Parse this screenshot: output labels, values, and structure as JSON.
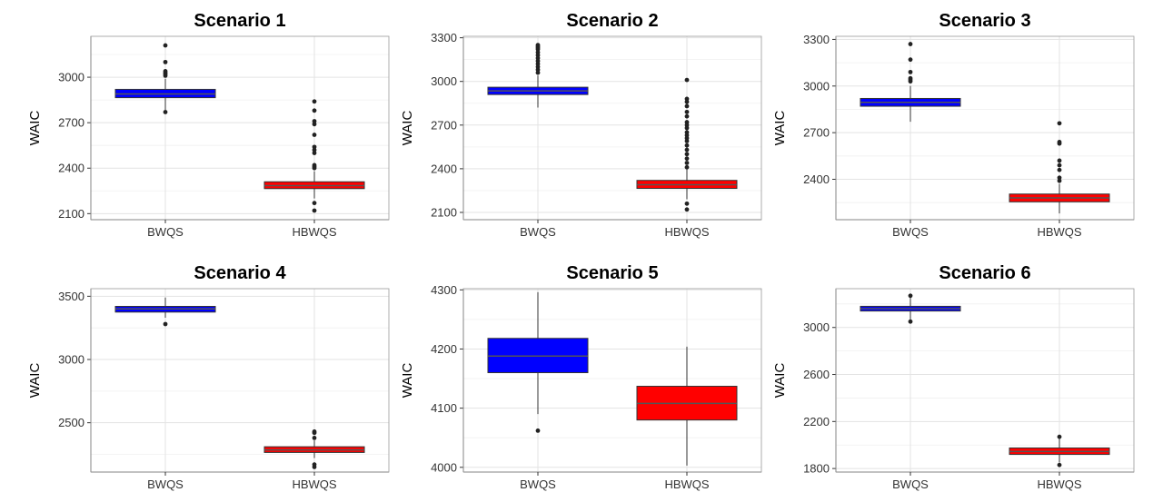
{
  "chart_data": [
    {
      "type": "box",
      "title": "Scenario 1",
      "ylabel": "WAIC",
      "categories": [
        "BWQS",
        "HBWQS"
      ],
      "colors": [
        "#0000ff",
        "#ff0000"
      ],
      "ylim": [
        2060,
        3270
      ],
      "yticks": [
        2100,
        2400,
        2700,
        3000
      ],
      "yticklabels": [
        "2100",
        "2400",
        "2700",
        "3000"
      ],
      "boxes": [
        {
          "q1": 2865,
          "median": 2890,
          "q3": 2920,
          "whisker_low": 2770,
          "whisker_high": 2990,
          "outliers": [
            2770,
            3010,
            3020,
            3030,
            3040,
            3100,
            3210
          ]
        },
        {
          "q1": 2265,
          "median": 2285,
          "q3": 2310,
          "whisker_low": 2200,
          "whisker_high": 2380,
          "outliers": [
            2120,
            2170,
            2400,
            2410,
            2420,
            2500,
            2520,
            2540,
            2620,
            2690,
            2710,
            2780,
            2840
          ]
        }
      ],
      "grid": true
    },
    {
      "type": "box",
      "title": "Scenario 2",
      "ylabel": "WAIC",
      "categories": [
        "BWQS",
        "HBWQS"
      ],
      "colors": [
        "#0000ff",
        "#ff0000"
      ],
      "ylim": [
        2050,
        3310
      ],
      "yticks": [
        2100,
        2400,
        2700,
        3000,
        3300
      ],
      "yticklabels": [
        "2100",
        "2400",
        "2700",
        "3000",
        "3300"
      ],
      "boxes": [
        {
          "q1": 2910,
          "median": 2935,
          "q3": 2960,
          "whisker_low": 2820,
          "whisker_high": 3040,
          "outliers": [
            3060,
            3080,
            3100,
            3120,
            3140,
            3160,
            3180,
            3200,
            3220,
            3230,
            3240,
            3250
          ]
        },
        {
          "q1": 2265,
          "median": 2290,
          "q3": 2320,
          "whisker_low": 2190,
          "whisker_high": 2400,
          "outliers": [
            2120,
            2160,
            2410,
            2440,
            2470,
            2500,
            2530,
            2560,
            2590,
            2610,
            2630,
            2650,
            2680,
            2700,
            2720,
            2760,
            2790,
            2830,
            2860,
            2880,
            3010
          ]
        }
      ],
      "grid": true
    },
    {
      "type": "box",
      "title": "Scenario 3",
      "ylabel": "WAIC",
      "categories": [
        "BWQS",
        "HBWQS"
      ],
      "colors": [
        "#0000ff",
        "#ff0000"
      ],
      "ylim": [
        2140,
        3320
      ],
      "yticks": [
        2400,
        2700,
        3000,
        3300
      ],
      "yticklabels": [
        "2400",
        "2700",
        "3000",
        "3300"
      ],
      "boxes": [
        {
          "q1": 2870,
          "median": 2895,
          "q3": 2920,
          "whisker_low": 2770,
          "whisker_high": 3000,
          "outliers": [
            3030,
            3040,
            3050,
            3090,
            3170,
            3270
          ]
        },
        {
          "q1": 2255,
          "median": 2280,
          "q3": 2305,
          "whisker_low": 2180,
          "whisker_high": 2370,
          "outliers": [
            2390,
            2410,
            2460,
            2490,
            2520,
            2630,
            2640,
            2760
          ]
        }
      ],
      "grid": true
    },
    {
      "type": "box",
      "title": "Scenario 4",
      "ylabel": "WAIC",
      "categories": [
        "BWQS",
        "HBWQS"
      ],
      "colors": [
        "#0000ff",
        "#ff0000"
      ],
      "ylim": [
        2110,
        3560
      ],
      "yticks": [
        2500,
        3000,
        3500
      ],
      "yticklabels": [
        "2500",
        "3000",
        "3500"
      ],
      "boxes": [
        {
          "q1": 3375,
          "median": 3400,
          "q3": 3420,
          "whisker_low": 3330,
          "whisker_high": 3490,
          "outliers": [
            3280
          ]
        },
        {
          "q1": 2265,
          "median": 2285,
          "q3": 2310,
          "whisker_low": 2220,
          "whisker_high": 2360,
          "outliers": [
            2150,
            2170,
            2380,
            2420,
            2430
          ]
        }
      ],
      "grid": true
    },
    {
      "type": "box",
      "title": "Scenario 5",
      "ylabel": "WAIC",
      "categories": [
        "BWQS",
        "HBWQS"
      ],
      "colors": [
        "#0000ff",
        "#ff0000"
      ],
      "ylim": [
        3992,
        4302
      ],
      "yticks": [
        4000,
        4100,
        4200,
        4300
      ],
      "yticklabels": [
        "4000",
        "4100",
        "4200",
        "4300"
      ],
      "boxes": [
        {
          "q1": 4160,
          "median": 4188,
          "q3": 4218,
          "whisker_low": 4090,
          "whisker_high": 4296,
          "outliers": [
            4062
          ]
        },
        {
          "q1": 4080,
          "median": 4108,
          "q3": 4137,
          "whisker_low": 4003,
          "whisker_high": 4204,
          "outliers": []
        }
      ],
      "grid": true
    },
    {
      "type": "box",
      "title": "Scenario 6",
      "ylabel": "WAIC",
      "categories": [
        "BWQS",
        "HBWQS"
      ],
      "colors": [
        "#0000ff",
        "#ff0000"
      ],
      "ylim": [
        1770,
        3330
      ],
      "yticks": [
        1800,
        2200,
        2600,
        3000
      ],
      "yticklabels": [
        "1800",
        "2200",
        "2600",
        "3000"
      ],
      "boxes": [
        {
          "q1": 3140,
          "median": 3160,
          "q3": 3180,
          "whisker_low": 3060,
          "whisker_high": 3260,
          "outliers": [
            3050,
            3270
          ]
        },
        {
          "q1": 1920,
          "median": 1945,
          "q3": 1975,
          "whisker_low": 1850,
          "whisker_high": 2060,
          "outliers": [
            1830,
            2070
          ]
        }
      ],
      "grid": true
    }
  ]
}
